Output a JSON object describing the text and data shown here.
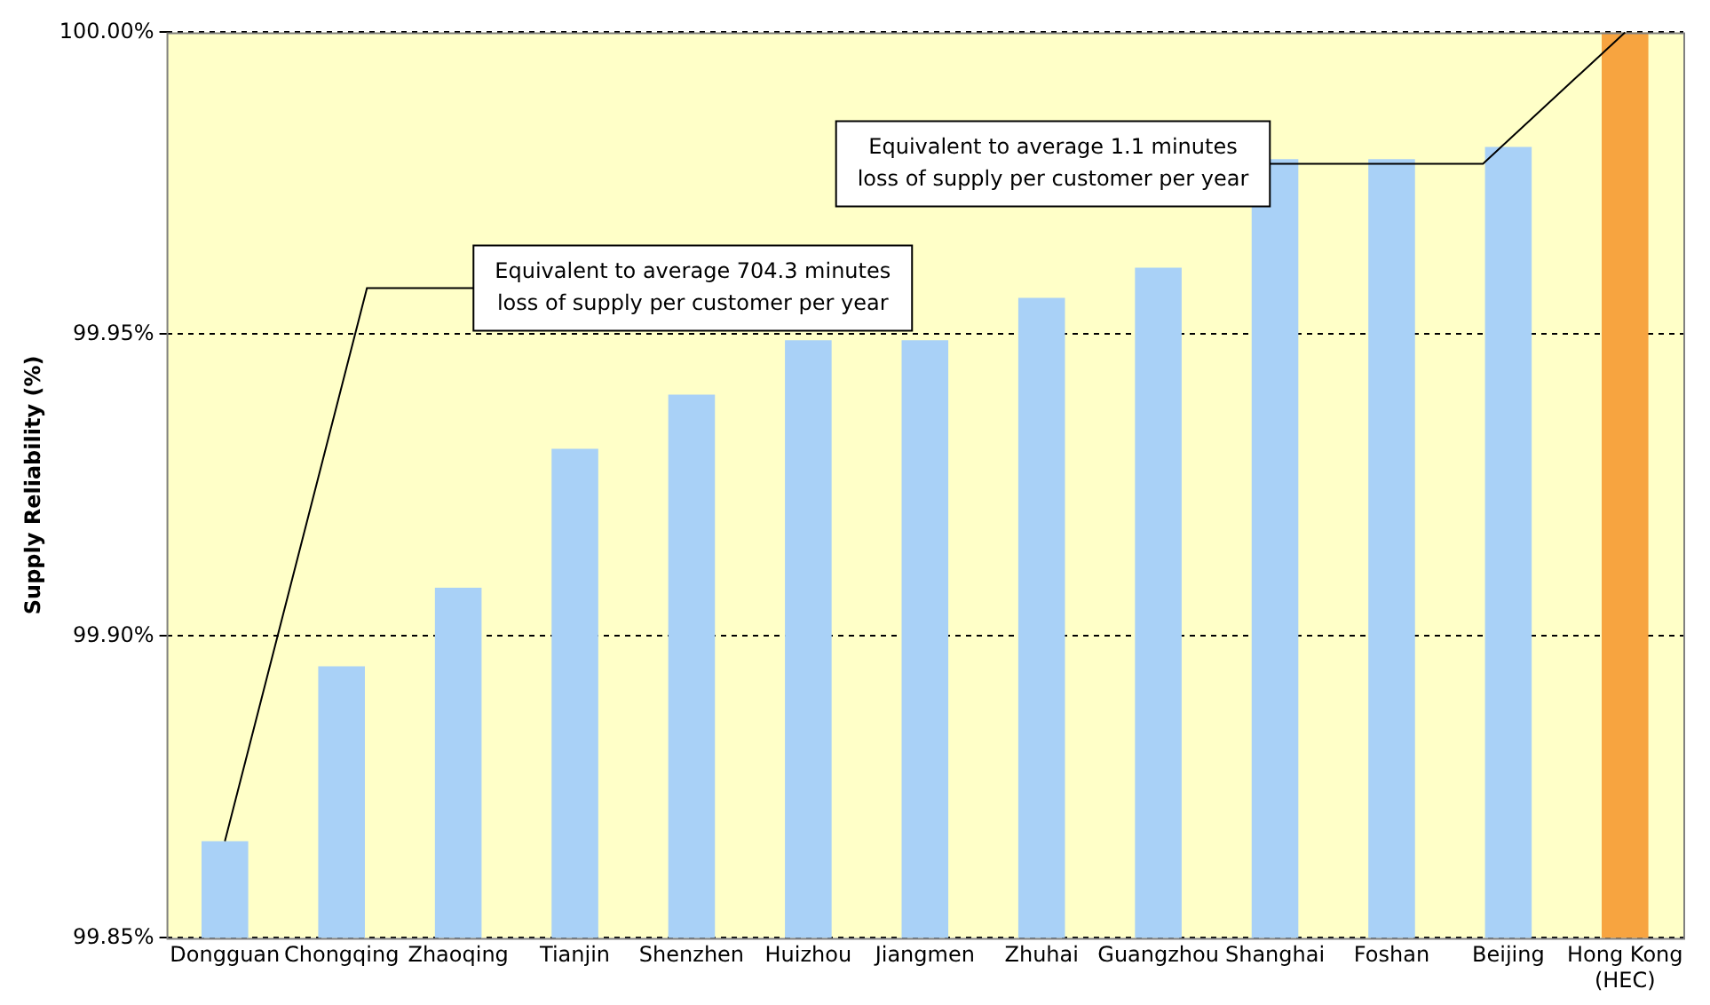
{
  "chart_data": {
    "type": "bar",
    "ylabel": "Supply Reliability (%)",
    "categories": [
      "Dongguan",
      "Chongqing",
      "Zhaoqing",
      "Tianjin",
      "Shenzhen",
      "Huizhou",
      "Jiangmen",
      "Zhuhai",
      "Guangzhou",
      "Shanghai",
      "Foshan",
      "Beijing",
      "Hong Kong\n(HEC)"
    ],
    "values": [
      99.866,
      99.895,
      99.908,
      99.931,
      99.94,
      99.949,
      99.949,
      99.956,
      99.961,
      99.979,
      99.979,
      99.981,
      100.0
    ],
    "colors": [
      "#a9d1f7",
      "#a9d1f7",
      "#a9d1f7",
      "#a9d1f7",
      "#a9d1f7",
      "#a9d1f7",
      "#a9d1f7",
      "#a9d1f7",
      "#a9d1f7",
      "#a9d1f7",
      "#a9d1f7",
      "#a9d1f7",
      "#f7a440"
    ],
    "ylim": [
      99.85,
      100.0
    ],
    "yticks": [
      {
        "value": 99.85,
        "label": "99.85%"
      },
      {
        "value": 99.9,
        "label": "99.90%"
      },
      {
        "value": 99.95,
        "label": "99.95%"
      },
      {
        "value": 100.0,
        "label": "100.00%"
      }
    ],
    "grid": "y",
    "annotations": [
      {
        "text": "Equivalent to average 704.3 minutes\nloss of supply per customer per year",
        "x": "Dongguan",
        "y": 99.866
      },
      {
        "text": "Equivalent to average 1.1 minutes\nloss of supply per customer per year",
        "x": "Hong Kong\n(HEC)",
        "y": 100.0
      }
    ]
  }
}
